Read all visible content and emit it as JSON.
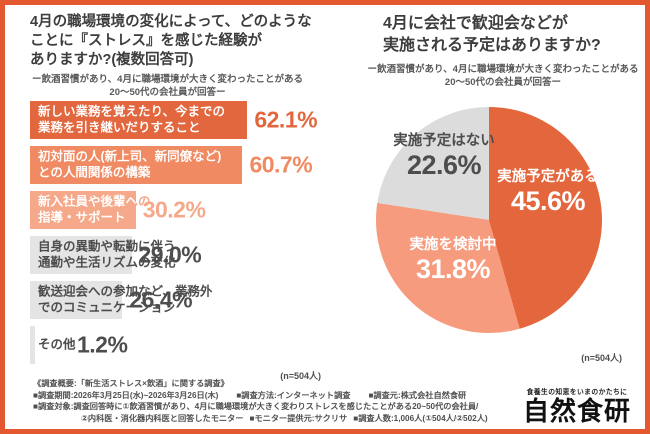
{
  "panels": {
    "left": {
      "title_lines": [
        "4月の職場環境の変化によって、どのような",
        "ことに『ストレス』を感じた経験が",
        "ありますか?(複数回答可)"
      ],
      "subtitle_lines": [
        "ー飲酒習慣があり、4月に職場環境が大きく変わったことがある",
        "20〜50代の会社員が回答ー"
      ],
      "n_label": "(n=504人)"
    },
    "right": {
      "title_lines": [
        "4月に会社で歓迎会などが",
        "実施される予定はありますか?"
      ],
      "subtitle_lines": [
        "ー飲酒習慣があり、4月に職場環境が大きく変わったことがある",
        "20〜50代の会社員が回答ー"
      ],
      "n_label": "(n=504人)"
    }
  },
  "chart_data": [
    {
      "type": "bar",
      "orientation": "horizontal",
      "title": "4月の職場環境の変化によって、どのようなことに『ストレス』を感じた経験がありますか?(複数回答可)",
      "categories": [
        "新しい業務を覚えたり、今までの\n業務を引き継いだりすること",
        "初対面の人(新上司、新同僚など)\nとの人間関係の構築",
        "新入社員や後輩への\n指導・サポート",
        "自身の異動や転勤に伴う、\n通勤や生活リズムの変化",
        "歓送迎会への参加など、業務外\nでのコミュニケーション",
        "その他"
      ],
      "values": [
        62.1,
        60.7,
        30.2,
        29.0,
        26.4,
        1.2
      ],
      "unit": "%",
      "xlim": [
        0,
        70
      ],
      "grid": false,
      "bar_colors": [
        "#e2673e",
        "#f08a62",
        "#f5a88a",
        "#e4e4e4",
        "#e4e4e4",
        "#e4e4e4"
      ],
      "label_colors": [
        "#ffffff",
        "#ffffff",
        "#ffffff",
        "#4d4d4d",
        "#4d4d4d",
        "#4d4d4d"
      ],
      "value_colors": [
        "#e2673e",
        "#f08a62",
        "#f5a88a",
        "#4d4d4d",
        "#4d4d4d",
        "#4d4d4d"
      ],
      "n": "n=504人"
    },
    {
      "type": "pie",
      "title": "4月に会社で歓迎会などが実施される予定はありますか?",
      "labels": [
        "実施予定がある",
        "実施を検討中",
        "実施予定はない"
      ],
      "values": [
        45.6,
        31.8,
        22.6
      ],
      "colors": [
        "#e4663c",
        "#f69b7d",
        "#dcdcdc"
      ],
      "label_text_colors": [
        "#ffffff",
        "#ffffff",
        "#4d4d4d"
      ],
      "start": "12-o'clock, clockwise",
      "n": "n=504人"
    }
  ],
  "footer": {
    "line1": "《調査概要:「新生活ストレス×飲酒」に関する調査》",
    "line2_segments": [
      "■調査期間:2026年3月25日(水)~2026年3月26日(木)",
      "■調査方法:インターネット調査",
      "■調査元:株式会社自然食研"
    ],
    "line3": "■調査対象:調査回答時に①飲酒習慣があり、4月に職場環境が大きく変わりストレスを感じたことがある20~50代の会社員/",
    "line4_segments": [
      "②内科医・消化器内科医と回答したモニター",
      "■モニター提供元:サクリサ",
      "■調査人数:1,006人(①504人/②502人)"
    ]
  },
  "logo": {
    "tagline": "食養生の知恵をいまのかたちに",
    "name": "自然食研"
  },
  "accent_colors": {
    "frame": "#e4582f",
    "dark_orange": "#e2673e",
    "mid_orange": "#f08a62",
    "light_orange": "#f5a88a",
    "pie_salmon": "#f69b7d",
    "gray": "#e4e4e4"
  }
}
